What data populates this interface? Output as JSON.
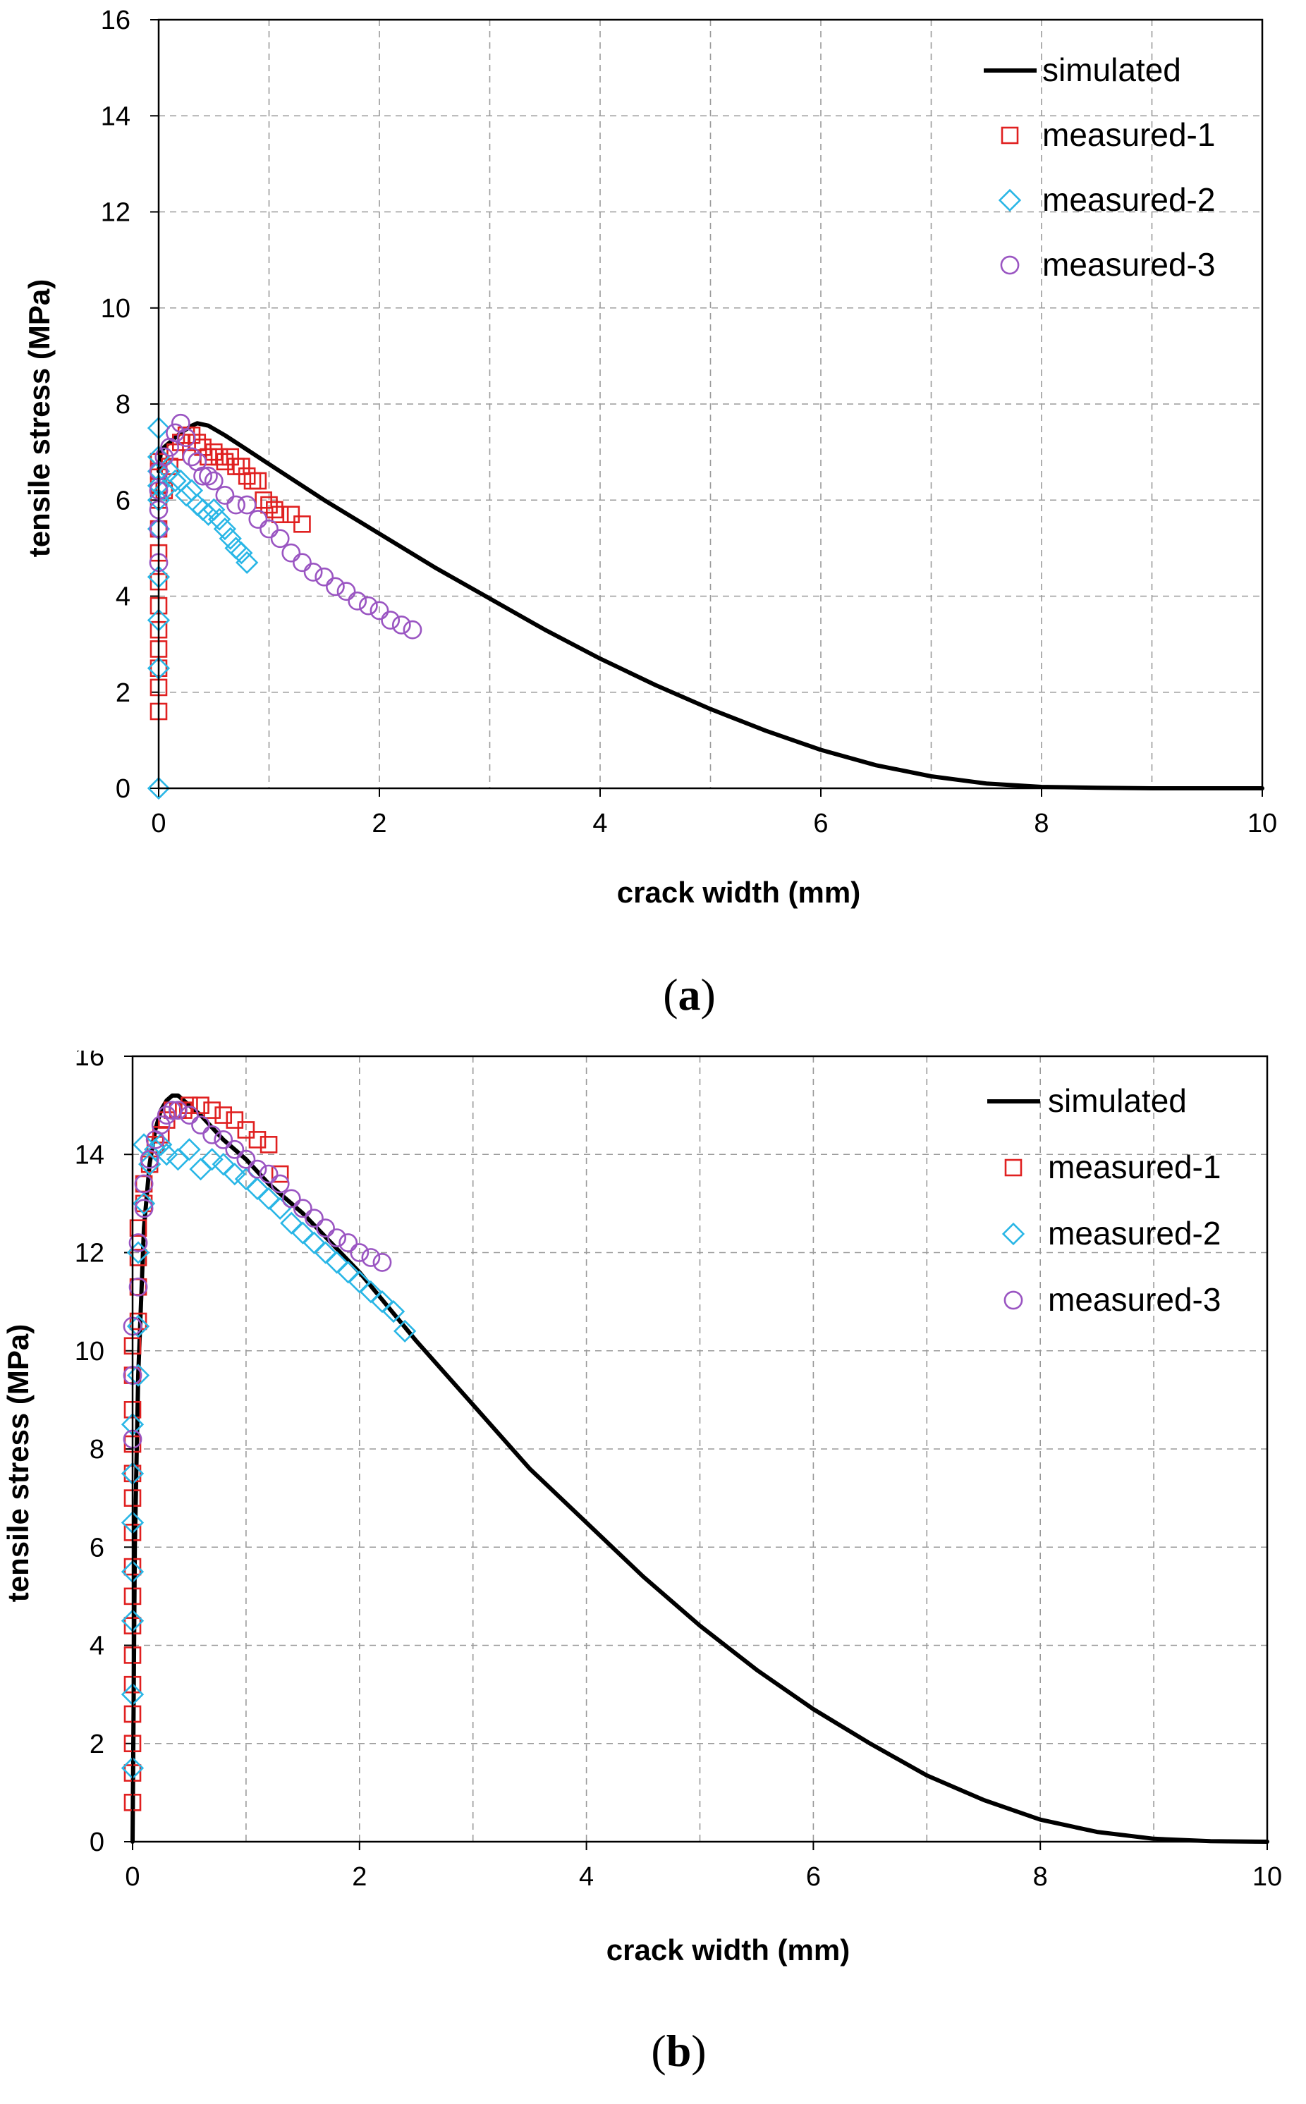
{
  "chart_data": [
    {
      "type": "line+scatter",
      "panel_label": "a",
      "title": "",
      "xlabel": "crack width (mm)",
      "ylabel": "tensile stress (MPa)",
      "xlim": [
        0,
        10
      ],
      "ylim": [
        0,
        16
      ],
      "xticks": [
        0,
        2,
        4,
        6,
        8,
        10
      ],
      "yticks": [
        0,
        2,
        4,
        6,
        8,
        10,
        12,
        14,
        16
      ],
      "grid": true,
      "legend_position": "top-right",
      "series": [
        {
          "name": "simulated",
          "kind": "line",
          "color": "#000000",
          "x": [
            0,
            0.02,
            0.05,
            0.1,
            0.2,
            0.3,
            0.35,
            0.45,
            0.6,
            0.8,
            1.0,
            1.5,
            2.0,
            2.5,
            3.0,
            3.5,
            4.0,
            4.5,
            5.0,
            5.5,
            6.0,
            6.5,
            7.0,
            7.5,
            8.0,
            8.5,
            9.0,
            9.5,
            10.0
          ],
          "y": [
            6.6,
            7.0,
            7.1,
            7.2,
            7.4,
            7.55,
            7.6,
            7.55,
            7.35,
            7.05,
            6.75,
            6.0,
            5.3,
            4.6,
            3.95,
            3.3,
            2.7,
            2.15,
            1.65,
            1.2,
            0.8,
            0.48,
            0.25,
            0.1,
            0.03,
            0.01,
            0.0,
            0.0,
            0.0
          ]
        },
        {
          "name": "measured-1",
          "kind": "marker",
          "marker": "square",
          "color": "#e02020",
          "x": [
            0.0,
            0.0,
            0.0,
            0.0,
            0.0,
            0.0,
            0.0,
            0.0,
            0.0,
            0.0,
            0.0,
            0.0,
            0.0,
            0.05,
            0.1,
            0.15,
            0.2,
            0.25,
            0.3,
            0.35,
            0.4,
            0.45,
            0.5,
            0.55,
            0.6,
            0.65,
            0.7,
            0.75,
            0.8,
            0.85,
            0.9,
            0.95,
            1.0,
            1.05,
            1.1,
            1.2,
            1.3
          ],
          "y": [
            1.6,
            2.1,
            2.5,
            2.9,
            3.3,
            3.8,
            4.3,
            4.9,
            5.4,
            6.0,
            6.3,
            6.6,
            6.8,
            6.2,
            6.7,
            7.0,
            7.2,
            7.35,
            7.35,
            7.2,
            7.1,
            6.9,
            7.0,
            6.9,
            6.8,
            6.9,
            6.7,
            6.7,
            6.5,
            6.4,
            6.4,
            6.0,
            5.9,
            5.8,
            5.7,
            5.7,
            5.5
          ]
        },
        {
          "name": "measured-2",
          "kind": "marker",
          "marker": "diamond",
          "color": "#29b6e6",
          "x": [
            0.0,
            0.0,
            0.0,
            0.0,
            0.0,
            0.0,
            0.0,
            0.0,
            0.0,
            0.0,
            0.05,
            0.1,
            0.15,
            0.2,
            0.25,
            0.3,
            0.35,
            0.4,
            0.45,
            0.5,
            0.55,
            0.6,
            0.65,
            0.7,
            0.75,
            0.8
          ],
          "y": [
            0.0,
            2.5,
            3.5,
            4.4,
            5.4,
            6.0,
            6.6,
            7.5,
            6.9,
            6.3,
            6.2,
            6.6,
            6.4,
            6.4,
            6.1,
            6.2,
            5.9,
            5.8,
            5.7,
            5.8,
            5.6,
            5.4,
            5.2,
            5.0,
            4.9,
            4.7
          ]
        },
        {
          "name": "measured-3",
          "kind": "marker",
          "marker": "circle",
          "color": "#9a55c2",
          "x": [
            0.0,
            0.0,
            0.0,
            0.0,
            0.0,
            0.05,
            0.1,
            0.15,
            0.2,
            0.25,
            0.3,
            0.35,
            0.4,
            0.45,
            0.5,
            0.6,
            0.7,
            0.8,
            0.9,
            1.0,
            1.1,
            1.2,
            1.3,
            1.4,
            1.5,
            1.6,
            1.7,
            1.8,
            1.9,
            2.0,
            2.1,
            2.2,
            2.3
          ],
          "y": [
            4.7,
            5.4,
            5.8,
            6.2,
            6.6,
            6.9,
            7.1,
            7.4,
            7.6,
            7.3,
            6.9,
            6.8,
            6.5,
            6.5,
            6.4,
            6.1,
            5.9,
            5.9,
            5.6,
            5.4,
            5.2,
            4.9,
            4.7,
            4.5,
            4.4,
            4.2,
            4.1,
            3.9,
            3.8,
            3.7,
            3.5,
            3.4,
            3.3
          ]
        }
      ]
    },
    {
      "type": "line+scatter",
      "panel_label": "b",
      "title": "",
      "xlabel": "crack width (mm)",
      "ylabel": "tensile stress (MPa)",
      "xlim": [
        0,
        10
      ],
      "ylim": [
        0,
        16
      ],
      "xticks": [
        0,
        2,
        4,
        6,
        8,
        10
      ],
      "yticks": [
        0,
        2,
        4,
        6,
        8,
        10,
        12,
        14,
        16
      ],
      "grid": true,
      "legend_position": "top-right",
      "series": [
        {
          "name": "simulated",
          "kind": "line",
          "color": "#000000",
          "x": [
            0,
            0.02,
            0.05,
            0.1,
            0.15,
            0.2,
            0.25,
            0.3,
            0.35,
            0.4,
            0.5,
            0.6,
            0.8,
            1.0,
            1.2,
            1.5,
            2.0,
            2.5,
            3.0,
            3.5,
            4.0,
            4.5,
            5.0,
            5.5,
            6.0,
            6.5,
            7.0,
            7.5,
            8.0,
            8.5,
            9.0,
            9.5,
            10.0
          ],
          "y": [
            0,
            6.0,
            9.5,
            12.5,
            13.8,
            14.5,
            14.9,
            15.1,
            15.2,
            15.2,
            15.0,
            14.8,
            14.3,
            13.9,
            13.4,
            12.8,
            11.6,
            10.2,
            8.9,
            7.6,
            6.5,
            5.4,
            4.4,
            3.5,
            2.7,
            2.0,
            1.35,
            0.85,
            0.45,
            0.2,
            0.06,
            0.01,
            0.0
          ]
        },
        {
          "name": "measured-1",
          "kind": "marker",
          "marker": "square",
          "color": "#e02020",
          "x": [
            0.0,
            0.0,
            0.0,
            0.0,
            0.0,
            0.0,
            0.0,
            0.0,
            0.0,
            0.0,
            0.0,
            0.0,
            0.0,
            0.0,
            0.0,
            0.0,
            0.05,
            0.05,
            0.05,
            0.05,
            0.1,
            0.1,
            0.15,
            0.2,
            0.25,
            0.3,
            0.35,
            0.4,
            0.45,
            0.5,
            0.6,
            0.7,
            0.8,
            0.9,
            1.0,
            1.1,
            1.2,
            1.3
          ],
          "y": [
            0.8,
            1.4,
            2.0,
            2.6,
            3.2,
            3.8,
            4.4,
            5.0,
            5.6,
            6.3,
            7.0,
            7.5,
            8.1,
            8.8,
            9.5,
            10.1,
            10.6,
            11.3,
            11.9,
            12.5,
            13.0,
            13.4,
            13.8,
            14.2,
            14.4,
            14.7,
            14.9,
            14.9,
            14.9,
            15.0,
            15.0,
            14.9,
            14.8,
            14.7,
            14.5,
            14.3,
            14.2,
            13.6
          ]
        },
        {
          "name": "measured-2",
          "kind": "marker",
          "marker": "diamond",
          "color": "#29b6e6",
          "x": [
            0.0,
            0.0,
            0.0,
            0.0,
            0.0,
            0.0,
            0.0,
            0.05,
            0.05,
            0.05,
            0.1,
            0.1,
            0.15,
            0.2,
            0.25,
            0.3,
            0.4,
            0.5,
            0.6,
            0.7,
            0.8,
            0.9,
            1.0,
            1.1,
            1.2,
            1.3,
            1.4,
            1.5,
            1.6,
            1.7,
            1.8,
            1.9,
            2.0,
            2.1,
            2.2,
            2.3,
            2.4
          ],
          "y": [
            1.5,
            3.0,
            4.5,
            5.5,
            6.5,
            7.5,
            8.5,
            9.5,
            10.5,
            12.0,
            13.0,
            14.2,
            13.8,
            14.1,
            14.2,
            14.0,
            13.9,
            14.1,
            13.7,
            13.9,
            13.8,
            13.6,
            13.5,
            13.3,
            13.1,
            12.9,
            12.6,
            12.4,
            12.2,
            12.0,
            11.8,
            11.6,
            11.4,
            11.2,
            11.0,
            10.8,
            10.4
          ]
        },
        {
          "name": "measured-3",
          "kind": "marker",
          "marker": "circle",
          "color": "#9a55c2",
          "x": [
            0.0,
            0.0,
            0.0,
            0.05,
            0.05,
            0.1,
            0.1,
            0.15,
            0.2,
            0.25,
            0.3,
            0.35,
            0.4,
            0.5,
            0.6,
            0.7,
            0.8,
            0.9,
            1.0,
            1.1,
            1.2,
            1.3,
            1.4,
            1.5,
            1.6,
            1.7,
            1.8,
            1.9,
            2.0,
            2.1,
            2.2
          ],
          "y": [
            8.2,
            9.5,
            10.5,
            11.3,
            12.2,
            12.9,
            13.4,
            13.9,
            14.3,
            14.6,
            14.8,
            14.9,
            14.9,
            14.8,
            14.6,
            14.4,
            14.3,
            14.1,
            13.9,
            13.7,
            13.6,
            13.4,
            13.1,
            12.9,
            12.7,
            12.5,
            12.3,
            12.2,
            12.0,
            11.9,
            11.8
          ]
        }
      ]
    }
  ]
}
